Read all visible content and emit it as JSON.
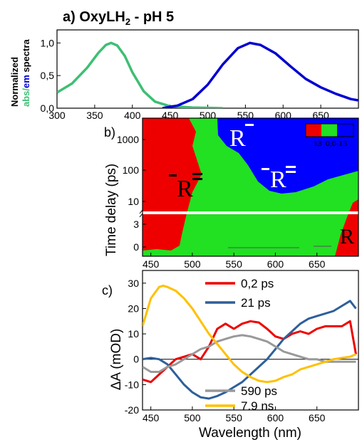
{
  "colors": {
    "green": "#3dbf73",
    "blue": "#0000d0",
    "red": "#ee0000",
    "lime": "#22e022",
    "zblue": "#0000ff",
    "navy": "#2e5f9a",
    "gray": "#999999",
    "yellow": "#ffc000"
  },
  "panel_a": {
    "title_prefix": "a) OxyLH",
    "title_sub": "2",
    "title_suffix": " - pH 5",
    "ylabel_line1": "Normalized",
    "ylabel_abs": "abs/",
    "ylabel_em": "em",
    "ylabel_rest": " spectra"
  },
  "panel_b": {
    "label": "b)",
    "ylabel": "Time delay (ps)",
    "species": {
      "r_anion": "R",
      "r_dianion_right": "R",
      "r_dianion_left": "R",
      "r_neutral": "R"
    },
    "legend_labels": [
      "13",
      "0,0-13"
    ]
  },
  "panel_c": {
    "label": "c)",
    "ylabel": "ΔA (mOD)",
    "xlabel": "Wavelength (nm)"
  },
  "chart_data": [
    {
      "type": "line",
      "xlim": [
        300,
        700
      ],
      "ylim": [
        0,
        1.2
      ],
      "xticks": [
        "300",
        "350",
        "400",
        "450",
        "500",
        "550",
        "600",
        "650"
      ],
      "yticks": [
        "0,0",
        "0,5",
        "1,0"
      ],
      "series": [
        {
          "color": "green",
          "x": [
            300,
            320,
            340,
            355,
            365,
            372,
            380,
            390,
            400,
            415,
            430,
            450,
            480,
            520
          ],
          "y": [
            0.24,
            0.38,
            0.62,
            0.85,
            0.97,
            1.0,
            0.96,
            0.8,
            0.55,
            0.26,
            0.1,
            0.03,
            0.01,
            0.0
          ]
        },
        {
          "color": "blue",
          "x": [
            440,
            460,
            480,
            500,
            520,
            540,
            556,
            570,
            590,
            610,
            630,
            650,
            670,
            690,
            700
          ],
          "y": [
            0.0,
            0.04,
            0.14,
            0.36,
            0.67,
            0.92,
            1.0,
            0.97,
            0.84,
            0.64,
            0.45,
            0.32,
            0.22,
            0.14,
            0.12
          ]
        }
      ]
    },
    {
      "type": "heatmap",
      "xlim": [
        440,
        700
      ],
      "yticks": [
        "0",
        "3",
        "10",
        "100",
        "1000"
      ],
      "legend": [
        "13",
        "0,0-13"
      ]
    },
    {
      "type": "line",
      "xlim": [
        440,
        700
      ],
      "ylim": [
        -20,
        35
      ],
      "xticks": [
        "450",
        "500",
        "550",
        "600",
        "650"
      ],
      "yticks": [
        "-20",
        "-10",
        "0",
        "10",
        "20",
        "30"
      ],
      "xlabel": "Wavelength (nm)",
      "ylabel": "ΔA (mOD)",
      "series": [
        {
          "name": "0,2 ps",
          "color": "red",
          "x": [
            440,
            450,
            460,
            470,
            480,
            490,
            500,
            510,
            520,
            530,
            540,
            550,
            560,
            570,
            580,
            590,
            600,
            610,
            620,
            630,
            640,
            650,
            660,
            670,
            680,
            690,
            697
          ],
          "y": [
            -8,
            -9,
            -6,
            -3,
            0,
            1,
            2,
            0,
            5,
            12,
            14,
            12,
            14,
            15,
            14.5,
            12,
            9,
            8,
            10,
            11,
            10,
            12,
            13,
            13,
            13,
            15,
            2
          ]
        },
        {
          "name": "21 ps",
          "color": "navy",
          "x": [
            440,
            450,
            460,
            470,
            480,
            490,
            500,
            510,
            520,
            530,
            540,
            550,
            560,
            570,
            580,
            590,
            600,
            610,
            620,
            630,
            640,
            650,
            660,
            670,
            680,
            690,
            697
          ],
          "y": [
            0,
            0.5,
            0,
            -2,
            -6,
            -10,
            -13,
            -15,
            -15.5,
            -14.5,
            -13,
            -11,
            -9,
            -6,
            -3,
            0,
            4,
            8,
            11,
            14,
            16,
            17,
            18,
            19,
            21,
            23,
            20
          ]
        },
        {
          "name": "590 ps",
          "color": "gray",
          "x": [
            440,
            450,
            460,
            470,
            480,
            490,
            500,
            510,
            520,
            530,
            540,
            550,
            560,
            570,
            580,
            590,
            600,
            610,
            620,
            630,
            640,
            650,
            660,
            670,
            680,
            690,
            697
          ],
          "y": [
            -3,
            -5,
            -5,
            -3,
            -2,
            0,
            2,
            4,
            5,
            7,
            8,
            9,
            9.5,
            9,
            8,
            7,
            5,
            3,
            2,
            1,
            0,
            0,
            -1,
            -1,
            -1,
            -1,
            -1
          ]
        },
        {
          "name": "7.9 ns",
          "color": "yellow",
          "x": [
            440,
            450,
            460,
            465,
            470,
            480,
            490,
            500,
            510,
            520,
            530,
            540,
            550,
            560,
            570,
            580,
            590,
            600,
            610,
            620,
            630,
            640,
            650,
            660,
            670,
            680,
            690,
            697
          ],
          "y": [
            13,
            24,
            28.5,
            29,
            28.5,
            27,
            24,
            20,
            15,
            10,
            6,
            2,
            -2,
            -5,
            -7,
            -8.5,
            -9,
            -8.5,
            -7,
            -6,
            -4,
            -3,
            -2,
            -1,
            0,
            0.5,
            1,
            2
          ]
        }
      ]
    }
  ]
}
